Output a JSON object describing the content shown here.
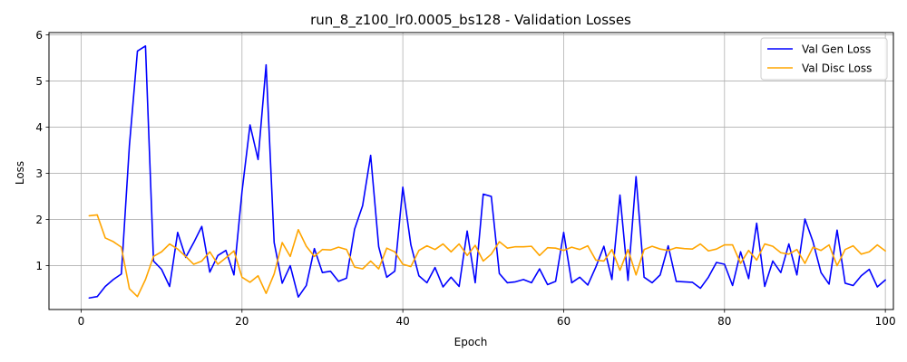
{
  "chart_data": {
    "type": "line",
    "title": "run_8_z100_lr0.0005_bs128 - Validation Losses",
    "xlabel": "Epoch",
    "ylabel": "Loss",
    "xlim": [
      -4,
      101
    ],
    "ylim": [
      0.05,
      6.05
    ],
    "xticks": [
      0,
      20,
      40,
      60,
      80,
      100
    ],
    "yticks": [
      1,
      2,
      3,
      4,
      5,
      6
    ],
    "grid": true,
    "legend_position": "top-right",
    "x": [
      1,
      2,
      3,
      4,
      5,
      6,
      7,
      8,
      9,
      10,
      11,
      12,
      13,
      14,
      15,
      16,
      17,
      18,
      19,
      20,
      21,
      22,
      23,
      24,
      25,
      26,
      27,
      28,
      29,
      30,
      31,
      32,
      33,
      34,
      35,
      36,
      37,
      38,
      39,
      40,
      41,
      42,
      43,
      44,
      45,
      46,
      47,
      48,
      49,
      50,
      51,
      52,
      53,
      54,
      55,
      56,
      57,
      58,
      59,
      60,
      61,
      62,
      63,
      64,
      65,
      66,
      67,
      68,
      69,
      70,
      71,
      72,
      73,
      74,
      75,
      76,
      77,
      78,
      79,
      80,
      81,
      82,
      83,
      84,
      85,
      86,
      87,
      88,
      89,
      90,
      91,
      92,
      93,
      94,
      95,
      96,
      97,
      98,
      99,
      100
    ],
    "series": [
      {
        "name": "Val Gen Loss",
        "color": "#0000ff",
        "values": [
          0.3,
          0.33,
          0.55,
          0.7,
          0.82,
          3.6,
          5.65,
          5.76,
          1.1,
          0.92,
          0.55,
          1.72,
          1.18,
          1.5,
          1.85,
          0.86,
          1.22,
          1.33,
          0.8,
          2.6,
          4.05,
          3.3,
          5.35,
          1.5,
          0.62,
          1.0,
          0.32,
          0.57,
          1.37,
          0.85,
          0.88,
          0.66,
          0.73,
          1.79,
          2.3,
          3.39,
          1.41,
          0.75,
          0.88,
          2.7,
          1.45,
          0.78,
          0.63,
          0.96,
          0.54,
          0.75,
          0.55,
          1.75,
          0.63,
          2.55,
          2.5,
          0.83,
          0.63,
          0.65,
          0.7,
          0.63,
          0.93,
          0.59,
          0.66,
          1.72,
          0.63,
          0.75,
          0.58,
          0.97,
          1.42,
          0.7,
          2.53,
          0.68,
          2.93,
          0.75,
          0.63,
          0.8,
          1.43,
          0.66,
          0.65,
          0.64,
          0.51,
          0.75,
          1.07,
          1.03,
          0.57,
          1.3,
          0.72,
          1.92,
          0.55,
          1.1,
          0.85,
          1.47,
          0.8,
          2.01,
          1.52,
          0.85,
          0.6,
          1.77,
          0.62,
          0.57,
          0.78,
          0.92,
          0.54,
          0.69
        ]
      },
      {
        "name": "Val Disc Loss",
        "color": "#ffa500",
        "values": [
          2.08,
          2.1,
          1.6,
          1.52,
          1.4,
          0.5,
          0.33,
          0.7,
          1.2,
          1.3,
          1.47,
          1.36,
          1.2,
          1.03,
          1.1,
          1.3,
          1.03,
          1.17,
          1.32,
          0.75,
          0.64,
          0.78,
          0.4,
          0.82,
          1.5,
          1.2,
          1.78,
          1.42,
          1.2,
          1.35,
          1.34,
          1.4,
          1.35,
          0.97,
          0.93,
          1.1,
          0.93,
          1.38,
          1.3,
          1.03,
          0.98,
          1.33,
          1.43,
          1.35,
          1.47,
          1.3,
          1.47,
          1.22,
          1.44,
          1.1,
          1.25,
          1.52,
          1.38,
          1.41,
          1.41,
          1.42,
          1.22,
          1.39,
          1.38,
          1.33,
          1.4,
          1.35,
          1.43,
          1.12,
          1.1,
          1.35,
          0.9,
          1.35,
          0.8,
          1.35,
          1.42,
          1.36,
          1.33,
          1.39,
          1.37,
          1.36,
          1.47,
          1.32,
          1.36,
          1.45,
          1.45,
          1.05,
          1.33,
          1.12,
          1.47,
          1.42,
          1.28,
          1.25,
          1.35,
          1.05,
          1.4,
          1.33,
          1.45,
          1.0,
          1.35,
          1.43,
          1.25,
          1.3,
          1.45,
          1.32
        ]
      }
    ]
  }
}
